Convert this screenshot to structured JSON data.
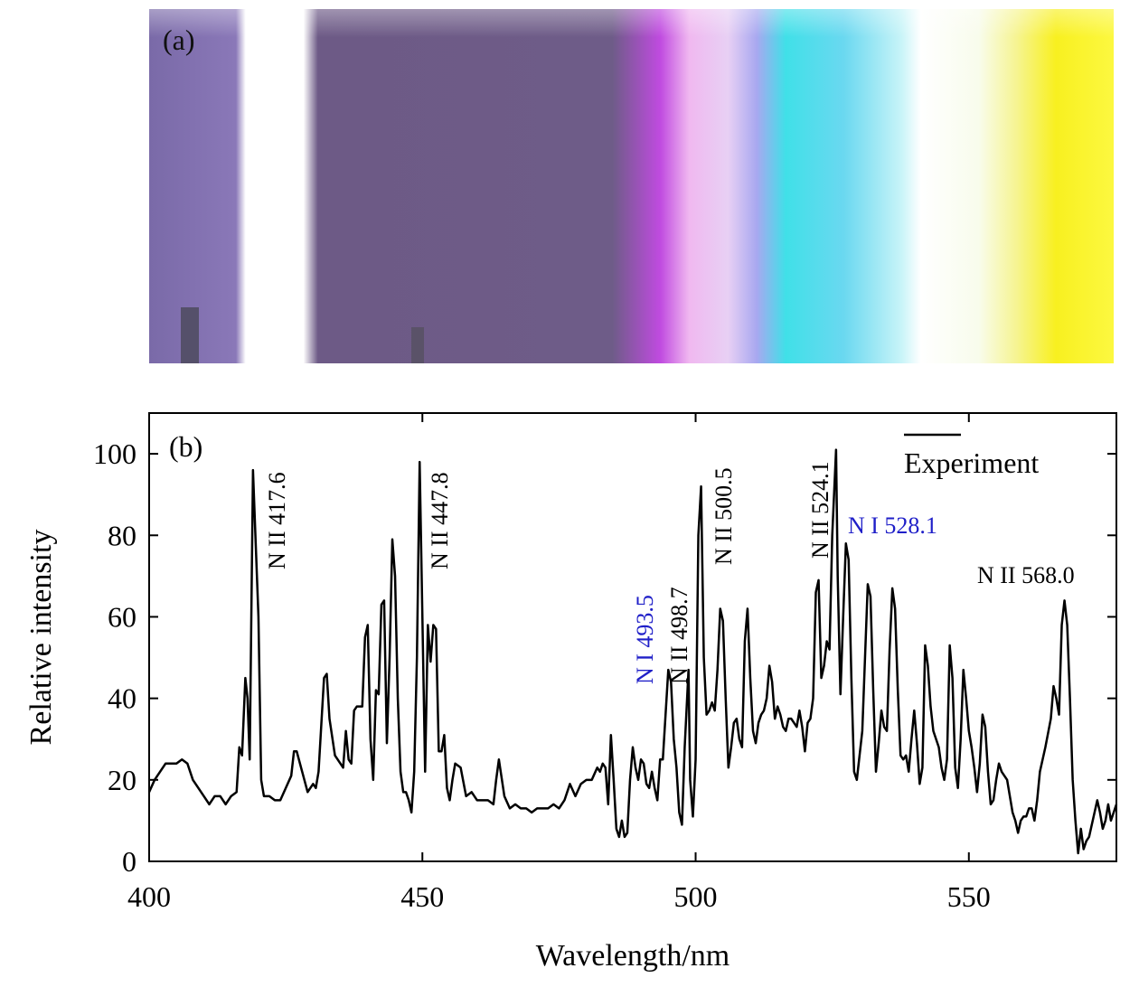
{
  "photo": {
    "label": "(a)"
  },
  "chart_data": {
    "type": "line",
    "panel_label": "(b)",
    "xlabel": "Wavelength/nm",
    "ylabel": "Relative intensity",
    "xlim": [
      400,
      577
    ],
    "ylim": [
      0,
      110
    ],
    "xticks": [
      400,
      450,
      500,
      550
    ],
    "yticks": [
      0,
      20,
      40,
      60,
      80,
      100
    ],
    "legend": "upper right",
    "x": [
      400,
      401,
      402,
      403,
      404,
      405,
      406,
      407,
      408,
      409,
      410,
      411,
      412,
      413,
      414,
      415,
      416,
      416.5,
      417,
      417.6,
      418,
      418.4,
      419,
      420,
      420.5,
      421,
      422,
      423,
      424,
      425,
      426,
      426.5,
      427,
      428,
      429,
      430,
      430.5,
      431,
      432,
      432.5,
      433,
      434,
      435,
      435.5,
      436,
      436.5,
      437,
      437.5,
      438,
      439,
      439.5,
      440,
      440.5,
      441,
      441.5,
      442,
      442.5,
      443,
      443.5,
      444,
      444.5,
      445,
      445.5,
      446,
      446.5,
      447,
      447.5,
      448,
      448.5,
      449,
      449.5,
      450,
      450.5,
      451,
      451.5,
      452,
      452.5,
      453,
      453.5,
      454,
      454.5,
      455,
      455.5,
      456,
      457,
      458,
      459,
      460,
      461,
      462,
      463,
      463.5,
      464,
      465,
      466,
      467,
      468,
      469,
      470,
      471,
      472,
      473,
      474,
      475,
      476,
      477,
      478,
      479,
      480,
      481,
      482,
      482.5,
      483,
      483.5,
      484,
      484.5,
      485,
      485.5,
      486,
      486.5,
      487,
      487.5,
      488,
      488.5,
      489,
      489.5,
      490,
      490.5,
      491,
      491.5,
      492,
      492.5,
      493,
      493.5,
      494,
      495,
      495.5,
      496,
      496.5,
      497,
      497.5,
      498,
      498.7,
      499,
      499.5,
      500,
      500.5,
      501,
      501.5,
      502,
      502.5,
      503,
      503.5,
      504,
      504.5,
      505,
      505.5,
      506,
      506.5,
      507,
      507.5,
      508,
      508.5,
      509,
      509.5,
      510,
      510.5,
      511,
      511.5,
      512,
      512.5,
      513,
      513.5,
      514,
      514.5,
      515,
      515.5,
      516,
      516.5,
      517,
      517.5,
      518,
      518.5,
      519,
      519.5,
      520,
      520.5,
      521,
      521.5,
      522,
      522.5,
      523,
      523.5,
      524,
      524.5,
      525,
      525.7,
      526,
      526.5,
      527,
      527.5,
      528,
      528.5,
      529,
      529.5,
      530,
      530.5,
      531,
      531.5,
      532,
      532.5,
      533,
      533.5,
      534,
      534.5,
      535,
      535.5,
      536,
      536.5,
      537,
      537.5,
      538,
      538.5,
      539,
      539.5,
      540,
      540.5,
      541,
      541.5,
      542,
      542.5,
      543,
      543.5,
      544,
      544.5,
      545,
      545.5,
      546,
      546.5,
      547,
      547.5,
      548,
      548.5,
      549,
      549.5,
      550,
      550.5,
      551,
      551.5,
      552,
      552.5,
      553,
      553.5,
      554,
      554.5,
      555,
      555.5,
      556,
      557,
      558,
      558.5,
      559,
      559.5,
      560,
      560.5,
      561,
      561.5,
      562,
      562.5,
      563,
      564,
      565,
      565.5,
      566,
      566.5,
      567,
      567.5,
      568,
      568.5,
      569,
      569.5,
      570,
      570.5,
      571,
      571.5,
      572,
      573,
      573.5,
      574,
      574.5,
      575,
      575.5,
      576,
      577
    ],
    "series": [
      {
        "name": "Experiment",
        "color": "#000000",
        "values": [
          17,
          20,
          22,
          24,
          24,
          24,
          25,
          24,
          20,
          18,
          16,
          14,
          16,
          16,
          14,
          16,
          17,
          28,
          26,
          45,
          40,
          25,
          96,
          60,
          20,
          16,
          16,
          15,
          15,
          18,
          21,
          27,
          27,
          22,
          17,
          19,
          18,
          22,
          45,
          46,
          35,
          26,
          24,
          23,
          32,
          25,
          24,
          37,
          38,
          38,
          55,
          58,
          30,
          20,
          42,
          41,
          63,
          64,
          29,
          50,
          79,
          70,
          40,
          22,
          17,
          17,
          15,
          12,
          22,
          50,
          98,
          60,
          22,
          58,
          49,
          58,
          57,
          27,
          27,
          31,
          18,
          15,
          20,
          24,
          23,
          16,
          17,
          15,
          15,
          15,
          14,
          20,
          25,
          16,
          13,
          14,
          13,
          13,
          12,
          13,
          13,
          13,
          14,
          13,
          15,
          19,
          16,
          19,
          20,
          20,
          23,
          22,
          24,
          23,
          14,
          31,
          20,
          8,
          6,
          10,
          6,
          7,
          20,
          28,
          23,
          20,
          25,
          24,
          19,
          18,
          22,
          18,
          15,
          25,
          25,
          47,
          44,
          30,
          23,
          12,
          9,
          28,
          47,
          20,
          11,
          25,
          80,
          92,
          50,
          36,
          37,
          39,
          37,
          47,
          62,
          59,
          40,
          23,
          28,
          34,
          35,
          30,
          28,
          54,
          62,
          45,
          32,
          29,
          34,
          36,
          37,
          40,
          48,
          44,
          35,
          38,
          36,
          33,
          32,
          35,
          35,
          34,
          33,
          37,
          33,
          27,
          34,
          35,
          40,
          66,
          69,
          45,
          48,
          54,
          52,
          80,
          101,
          70,
          41,
          60,
          78,
          74,
          45,
          22,
          20,
          26,
          32,
          50,
          68,
          65,
          42,
          22,
          29,
          37,
          33,
          32,
          52,
          67,
          62,
          42,
          26,
          25,
          26,
          22,
          30,
          37,
          29,
          19,
          23,
          53,
          48,
          38,
          32,
          30,
          28,
          23,
          20,
          25,
          53,
          45,
          23,
          18,
          30,
          47,
          40,
          32,
          28,
          23,
          17,
          24,
          36,
          33,
          22,
          14,
          15,
          20,
          24,
          22,
          20,
          12,
          10,
          7,
          10,
          11,
          11,
          13,
          13,
          10,
          15,
          22,
          28,
          35,
          43,
          40,
          36,
          58,
          64,
          58,
          40,
          20,
          10,
          2,
          8,
          3,
          5,
          6,
          12,
          15,
          12,
          8,
          10,
          14,
          10,
          14
        ]
      }
    ],
    "annotations": [
      {
        "text": "N II 417.6",
        "color": "#000000"
      },
      {
        "text": "N II 447.8",
        "color": "#000000"
      },
      {
        "text": "N I 493.5",
        "color": "#1f1fc8"
      },
      {
        "text": "N II 498.7",
        "color": "#000000"
      },
      {
        "text": "N II 500.5",
        "color": "#000000"
      },
      {
        "text": "N II 524.1",
        "color": "#000000"
      },
      {
        "text": "N I 528.1",
        "color": "#1f1fc8"
      },
      {
        "text": "N II 568.0",
        "color": "#000000"
      }
    ]
  }
}
